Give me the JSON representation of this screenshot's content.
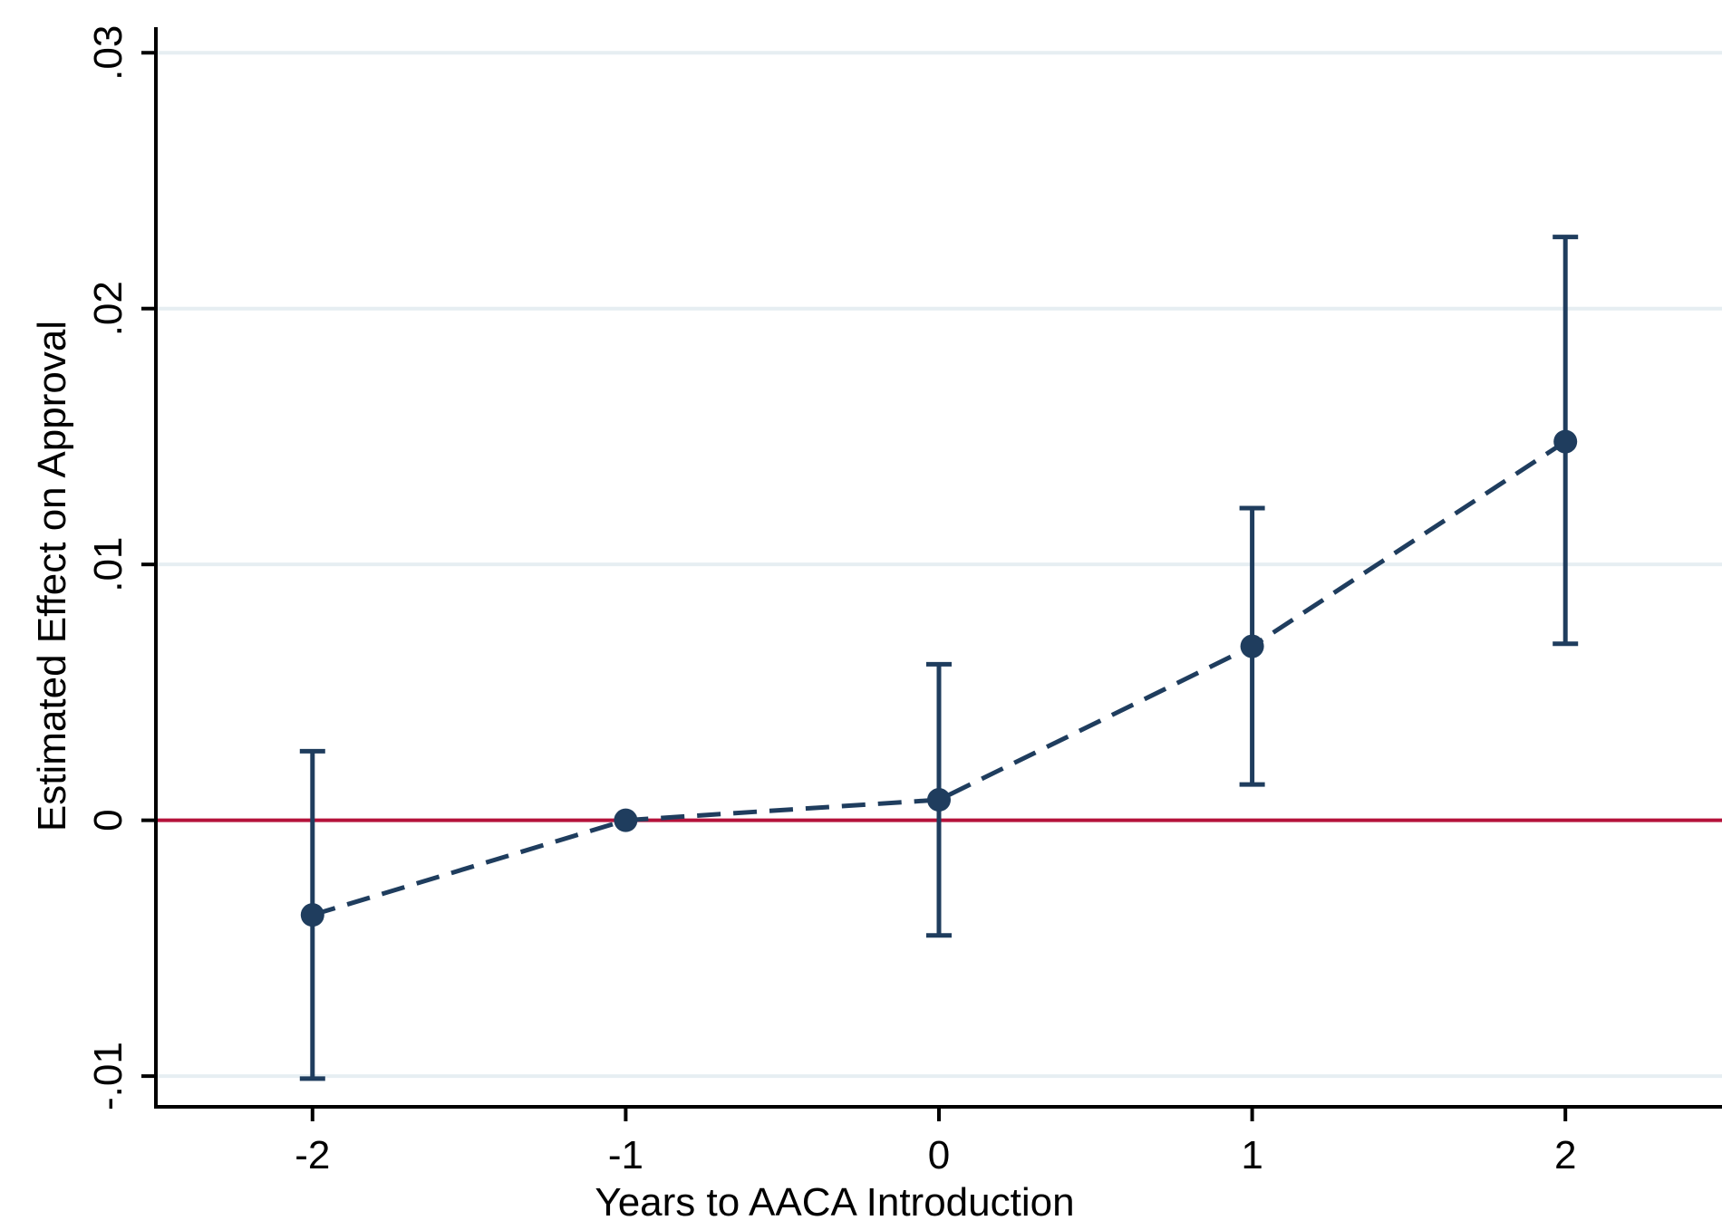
{
  "chart_data": {
    "type": "scatter",
    "title": "",
    "xlabel": "Years to AACA Introduction",
    "ylabel": "Estimated Effect on Approval",
    "xlim": [
      -2.5,
      2.5
    ],
    "ylim": [
      -0.0112,
      0.031
    ],
    "x_ticks": [
      {
        "value": -2,
        "label": "-2"
      },
      {
        "value": -1,
        "label": "-1"
      },
      {
        "value": 0,
        "label": "0"
      },
      {
        "value": 1,
        "label": "1"
      },
      {
        "value": 2,
        "label": "2"
      }
    ],
    "y_ticks": [
      {
        "value": -0.01,
        "label": "-.01"
      },
      {
        "value": 0,
        "label": "0"
      },
      {
        "value": 0.01,
        "label": ".01"
      },
      {
        "value": 0.02,
        "label": ".02"
      },
      {
        "value": 0.03,
        "label": ".03"
      }
    ],
    "grid": "horizontal",
    "legend": "none",
    "reference_line": {
      "y": 0,
      "color": "#b5123a"
    },
    "series": [
      {
        "color": "#1f3d5e",
        "line_style": "dashed",
        "points": [
          {
            "x": -2,
            "y": -0.0037,
            "ci_low": -0.0101,
            "ci_high": 0.0027
          },
          {
            "x": -1,
            "y": 0.0,
            "ci_low": null,
            "ci_high": null
          },
          {
            "x": 0,
            "y": 0.0008,
            "ci_low": -0.0045,
            "ci_high": 0.0061
          },
          {
            "x": 1,
            "y": 0.0068,
            "ci_low": 0.0014,
            "ci_high": 0.0122
          },
          {
            "x": 2,
            "y": 0.0148,
            "ci_low": 0.0069,
            "ci_high": 0.0228
          }
        ]
      }
    ],
    "colors": {
      "axis": "#000000",
      "grid": "#e6eef2",
      "series": "#1f3d5e",
      "reference": "#b5123a"
    }
  }
}
